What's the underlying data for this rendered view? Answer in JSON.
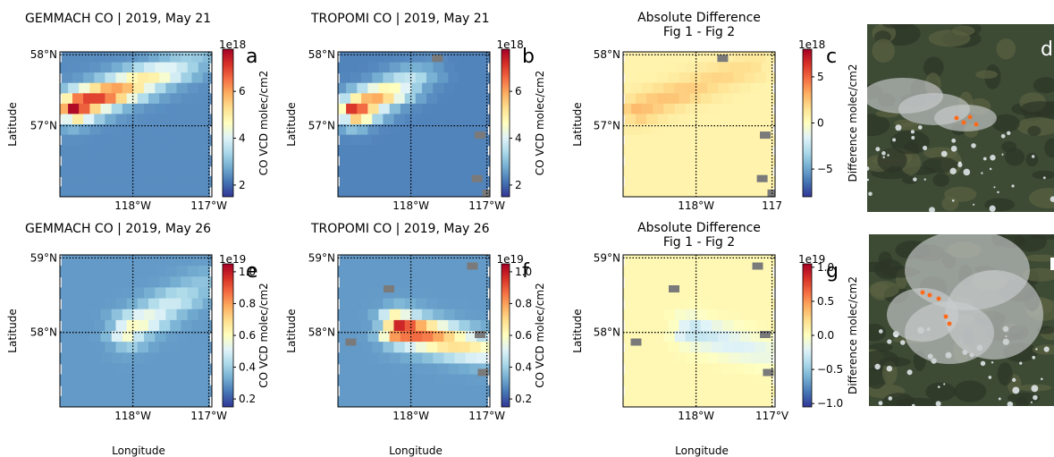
{
  "figure": {
    "x_label": "Longitude",
    "y_label": "Latitude",
    "colors": {
      "grid": "#000000",
      "nodata": "#7a7a7a",
      "cmap": "RdYlBu_r"
    }
  },
  "chart_data": [
    {
      "type": "heatmap",
      "panel": "a",
      "title": "GEMMACH   CO | 2019, May 21",
      "xlabel": "Longitude",
      "ylabel": "Latitude",
      "x_ticks": [
        "118°W",
        "117°W"
      ],
      "y_ticks": [
        "58°N",
        "57°N"
      ],
      "colorbar": {
        "label": "CO VCD  molec/cm2",
        "exponent": "1e18",
        "ticks": [
          "2",
          "4",
          "6"
        ],
        "range": [
          1.5,
          7.8
        ]
      },
      "field": {
        "background": 2.4,
        "plume_from": [
          0.1,
          0.38
        ],
        "plume_to": [
          0.95,
          0.05
        ],
        "plume_peak": 7.8,
        "plume_tail": 3.0
      }
    },
    {
      "type": "heatmap",
      "panel": "b",
      "title": "TROPOMI CO | 2019, May 21",
      "xlabel": "Longitude",
      "ylabel": "Latitude",
      "x_ticks": [
        "118°W",
        "117°W"
      ],
      "y_ticks": [
        "58°N",
        "57°N"
      ],
      "colorbar": {
        "label": "CO VCD  molec/cm2",
        "exponent": "1e18",
        "ticks": [
          "2",
          "4",
          "6"
        ],
        "range": [
          1.5,
          7.8
        ]
      },
      "field": {
        "background": 2.3,
        "plume_from": [
          0.12,
          0.4
        ],
        "plume_to": [
          0.6,
          0.15
        ],
        "plume_peak": 7.2,
        "plume_tail": 2.8
      }
    },
    {
      "type": "heatmap",
      "panel": "c",
      "title": "Absolute Difference",
      "subtitle": "Fig 1 - Fig 2",
      "xlabel": "Longitude",
      "ylabel": "Latitude",
      "x_ticks": [
        "118°W",
        "117"
      ],
      "y_ticks": [
        "58°N",
        "57°N"
      ],
      "colorbar": {
        "label": "Difference  molec/cm2",
        "exponent": "1e18",
        "ticks": [
          "5",
          "0",
          "−5"
        ],
        "range": [
          -8,
          8
        ]
      },
      "field": {
        "background": 0.6,
        "plume_from": [
          0.1,
          0.4
        ],
        "plume_to": [
          0.85,
          0.1
        ],
        "plume_peak": 2.8,
        "plume_tail": 1.6
      }
    },
    {
      "type": "heatmap",
      "panel": "e",
      "title": "GEMMACH   CO | 2019, May 26",
      "xlabel": "Longitude",
      "ylabel": "Latitude",
      "x_ticks": [
        "118°W",
        "117°W"
      ],
      "y_ticks": [
        "59°N",
        "58°N"
      ],
      "colorbar": {
        "label": "CO VCD  molec/cm2",
        "exponent": "1e19",
        "ticks": [
          "1.0",
          "0.8",
          "0.6",
          "0.4",
          "0.2"
        ],
        "range": [
          0.15,
          1.05
        ]
      },
      "field": {
        "background": 0.3,
        "plume_from": [
          0.45,
          0.5
        ],
        "plume_to": [
          0.95,
          0.2
        ],
        "plume_peak": 0.62,
        "plume_tail": 0.38
      }
    },
    {
      "type": "heatmap",
      "panel": "f",
      "title": "TROPOMI CO | 2019, May 26",
      "xlabel": "Longitude",
      "ylabel": "Latitude",
      "x_ticks": [
        "118°W",
        "117°W"
      ],
      "y_ticks": [
        "59°N",
        "58°N"
      ],
      "colorbar": {
        "label": "CO VCD  molec/cm2",
        "exponent": "1e19",
        "ticks": [
          "1.0",
          "0.8",
          "0.6",
          "0.4",
          "0.2"
        ],
        "range": [
          0.15,
          1.05
        ]
      },
      "field": {
        "background": 0.3,
        "plume_from": [
          0.4,
          0.48
        ],
        "plume_to": [
          0.95,
          0.62
        ],
        "plume_peak": 1.0,
        "plume_tail": 0.6
      }
    },
    {
      "type": "heatmap",
      "panel": "g",
      "title": "Absolute Difference",
      "subtitle": "Fig 1 - Fig 2",
      "xlabel": "Longitude",
      "ylabel": "Latitude",
      "x_ticks": [
        "118°W",
        "117°V"
      ],
      "y_ticks": [
        "59°N",
        "58°N"
      ],
      "colorbar": {
        "label": "Difference  molec/cm2",
        "exponent": "1e19",
        "ticks": [
          "1.0",
          "0.5",
          "0.0",
          "−0.5",
          "−1.0"
        ],
        "range": [
          -1.05,
          1.05
        ]
      },
      "field": {
        "background": 0.05,
        "plume_from": [
          0.45,
          0.5
        ],
        "plume_to": [
          0.95,
          0.65
        ],
        "plume_peak": -0.35,
        "plume_tail": -0.15
      }
    }
  ],
  "photos": [
    {
      "panel": "d",
      "label": "d",
      "description": "satellite fire smoke photo"
    },
    {
      "panel": "h",
      "label": "",
      "description": "satellite fire smoke photo"
    }
  ]
}
